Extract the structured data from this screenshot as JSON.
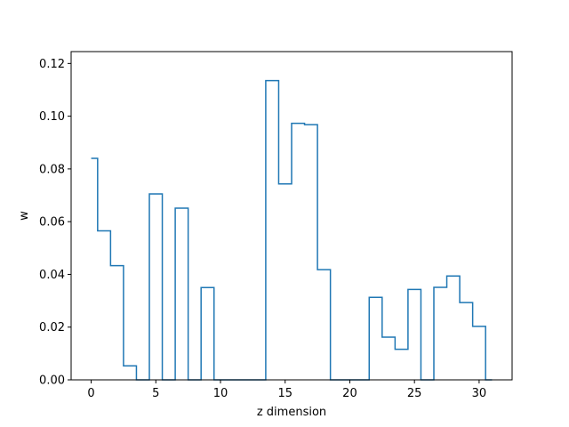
{
  "chart_data": {
    "type": "line",
    "style": "step",
    "xlabel": "z dimension",
    "ylabel": "w",
    "xlim": [
      -1.55,
      32.55
    ],
    "ylim": [
      0,
      0.1245
    ],
    "x_ticks": [
      0,
      5,
      10,
      15,
      20,
      25,
      30
    ],
    "x_tick_labels": [
      "0",
      "5",
      "10",
      "15",
      "20",
      "25",
      "30"
    ],
    "y_ticks": [
      0.0,
      0.02,
      0.04,
      0.06,
      0.08,
      0.1,
      0.12
    ],
    "y_tick_labels": [
      "0.00",
      "0.02",
      "0.04",
      "0.06",
      "0.08",
      "0.10",
      "0.12"
    ],
    "grid": false,
    "series": [
      {
        "color": "#1f77b4",
        "x": [
          0,
          1,
          2,
          3,
          4,
          5,
          6,
          7,
          8,
          9,
          10,
          11,
          12,
          13,
          14,
          15,
          16,
          17,
          18,
          19,
          20,
          21,
          22,
          23,
          24,
          25,
          26,
          27,
          28,
          29,
          30,
          31
        ],
        "values": [
          0.084,
          0.0565,
          0.0433,
          0.0053,
          0.0,
          0.0705,
          0.0,
          0.0651,
          0.0,
          0.035,
          0.0,
          0.0,
          0.0,
          0.0,
          0.1135,
          0.0743,
          0.0973,
          0.0968,
          0.0418,
          0.0,
          0.0,
          0.0,
          0.0313,
          0.0162,
          0.0116,
          0.0343,
          0.0,
          0.0351,
          0.0394,
          0.0293,
          0.0203,
          0.0
        ]
      }
    ]
  }
}
